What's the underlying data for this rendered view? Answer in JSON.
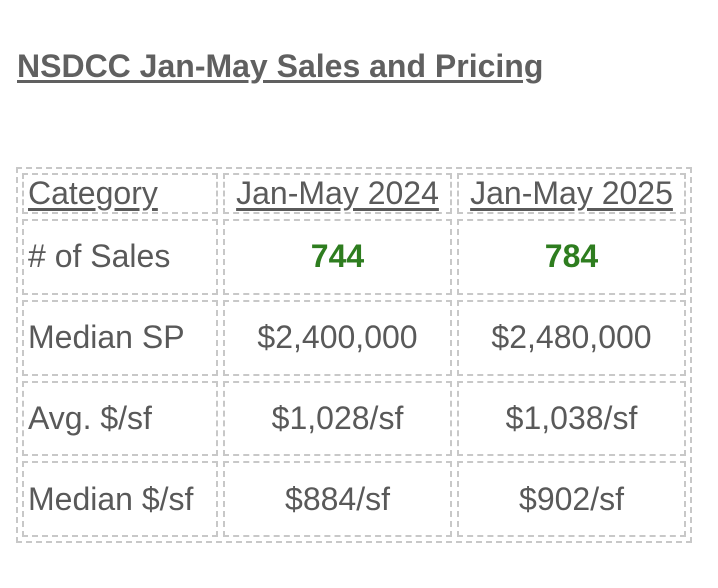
{
  "title": "NSDCC Jan-May Sales and Pricing",
  "table": {
    "headers": [
      "Category",
      "Jan-May 2024",
      "Jan-May 2025"
    ],
    "rows": [
      {
        "label": "# of Sales",
        "values": [
          "744",
          "784"
        ],
        "highlight": true
      },
      {
        "label": "Median SP",
        "values": [
          "$2,400,000",
          "$2,480,000"
        ],
        "highlight": false
      },
      {
        "label": "Avg. $/sf",
        "values": [
          "$1,028/sf",
          "$1,038/sf"
        ],
        "highlight": false
      },
      {
        "label": "Median $/sf",
        "values": [
          "$884/sf",
          "$902/sf"
        ],
        "highlight": false
      }
    ]
  },
  "colors": {
    "text": "#595959",
    "highlight": "#2e7d1f",
    "border": "#c8c8c8"
  }
}
